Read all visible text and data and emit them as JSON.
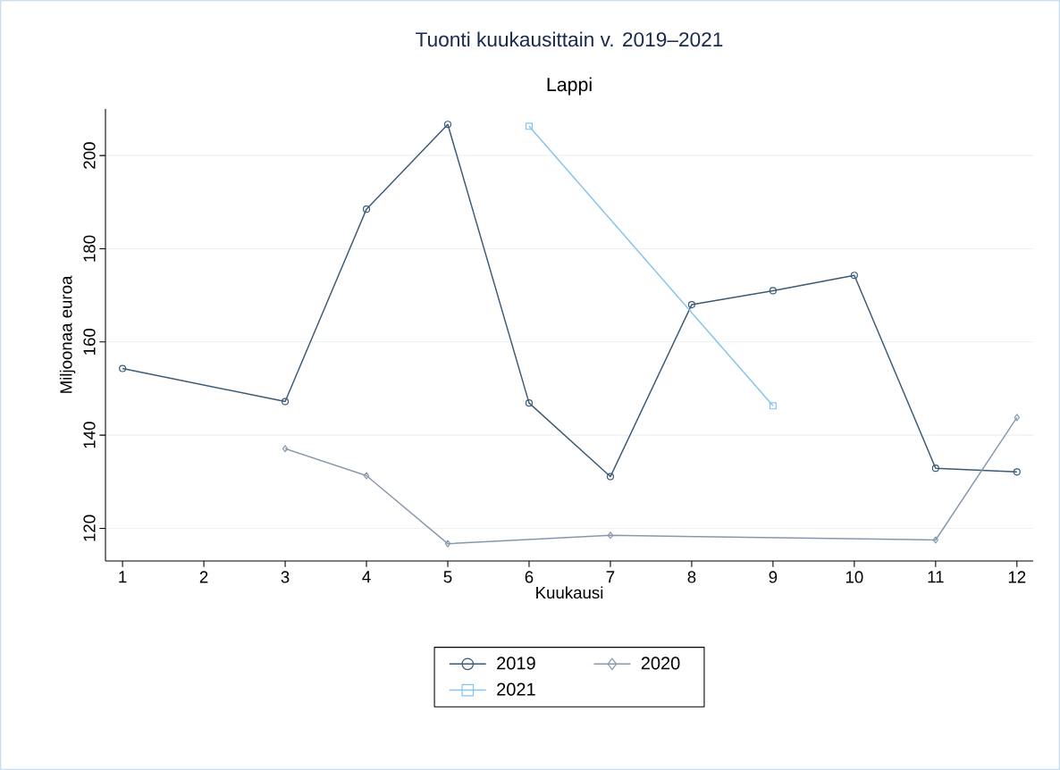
{
  "chart_data": {
    "type": "line",
    "title": "Tuonti kuukausittain v. 2019–2021",
    "subtitle": "Lappi",
    "xlabel": "Kuukausi",
    "ylabel": "Miljoonaa euroa",
    "series": [
      {
        "name": "2019",
        "color": "#3b5a75",
        "marker": "circle",
        "x": [
          1,
          3,
          4,
          5,
          6,
          7,
          8,
          9,
          10,
          11,
          12
        ],
        "values": [
          154.3,
          147.2,
          188.5,
          206.7,
          146.9,
          131.1,
          168.0,
          171.0,
          174.3,
          132.9,
          132.1
        ]
      },
      {
        "name": "2020",
        "color": "#8798ae",
        "marker": "diamond",
        "x": [
          3,
          4,
          5,
          7,
          11,
          12
        ],
        "values": [
          137.1,
          131.3,
          116.7,
          118.5,
          117.5,
          143.8
        ]
      },
      {
        "name": "2021",
        "color": "#86c3ea",
        "marker": "square",
        "x": [
          6,
          9
        ],
        "values": [
          206.3,
          146.3
        ]
      }
    ],
    "xlim": [
      0.79,
      12.2
    ],
    "ylim": [
      113,
      210
    ],
    "xticks": [
      1,
      2,
      3,
      4,
      5,
      6,
      7,
      8,
      9,
      10,
      11,
      12
    ],
    "yticks": [
      120,
      140,
      160,
      180,
      200
    ],
    "grid": "y",
    "legend": "bottom",
    "line_style": "solid"
  }
}
